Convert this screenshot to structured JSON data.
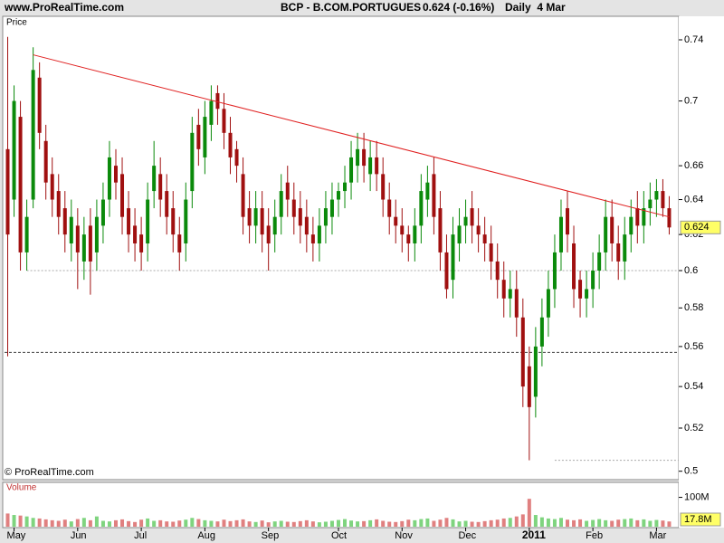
{
  "chart_data": {
    "type": "candlestick",
    "site": "www.ProRealTime.com",
    "title": "BCP - B.COM.PORTUGUES",
    "quote": "0.624 (-0.16%)",
    "period": "Daily  4 Mar",
    "panel_label": "Price",
    "watermark": "© ProRealTime.com",
    "log_scale": true,
    "up_color": "#0b8a0b",
    "down_color": "#a01010",
    "categories": [
      null,
      "May",
      null,
      null,
      null,
      null,
      null,
      null,
      null,
      null,
      null,
      "Jun",
      null,
      null,
      null,
      null,
      null,
      null,
      null,
      null,
      null,
      "Jul",
      null,
      null,
      null,
      null,
      null,
      null,
      null,
      null,
      null,
      "Aug",
      null,
      null,
      null,
      null,
      null,
      null,
      null,
      null,
      null,
      "Sep",
      null,
      null,
      null,
      null,
      null,
      null,
      null,
      null,
      null,
      null,
      "Oct",
      null,
      null,
      null,
      null,
      null,
      null,
      null,
      null,
      null,
      "Nov",
      null,
      null,
      null,
      null,
      null,
      null,
      null,
      null,
      null,
      "Dec",
      null,
      null,
      null,
      null,
      null,
      null,
      null,
      null,
      null,
      "2011",
      null,
      null,
      null,
      null,
      null,
      null,
      null,
      null,
      null,
      "Feb",
      null,
      null,
      null,
      null,
      null,
      null,
      null,
      null,
      null,
      "Mar",
      null,
      null
    ],
    "open": [
      0.67,
      0.64,
      0.69,
      0.61,
      0.64,
      0.715,
      0.675,
      0.655,
      0.645,
      0.635,
      0.615,
      0.625,
      0.605,
      0.625,
      0.61,
      0.625,
      0.64,
      0.66,
      0.655,
      0.635,
      0.625,
      0.62,
      0.615,
      0.645,
      0.655,
      0.645,
      0.635,
      0.62,
      0.615,
      0.645,
      0.685,
      0.665,
      0.685,
      0.705,
      0.695,
      0.68,
      0.67,
      0.655,
      0.635,
      0.625,
      0.635,
      0.625,
      0.62,
      0.63,
      0.65,
      0.64,
      0.635,
      0.63,
      0.62,
      0.615,
      0.625,
      0.63,
      0.64,
      0.645,
      0.65,
      0.66,
      0.67,
      0.655,
      0.665,
      0.655,
      0.64,
      0.63,
      0.625,
      0.62,
      0.615,
      0.625,
      0.64,
      0.655,
      0.635,
      0.61,
      0.595,
      0.615,
      0.625,
      0.635,
      0.625,
      0.62,
      0.615,
      0.605,
      0.595,
      0.585,
      0.59,
      0.575,
      0.55,
      0.535,
      0.56,
      0.575,
      0.59,
      0.61,
      0.635,
      0.615,
      0.595,
      0.585,
      0.59,
      0.6,
      0.61,
      0.63,
      0.615,
      0.605,
      0.62,
      0.635,
      0.625,
      0.635,
      0.64,
      0.645,
      0.635
    ],
    "high": [
      0.742,
      0.71,
      0.7,
      0.64,
      0.735,
      0.725,
      0.685,
      0.665,
      0.655,
      0.645,
      0.64,
      0.635,
      0.63,
      0.635,
      0.64,
      0.65,
      0.675,
      0.67,
      0.665,
      0.645,
      0.635,
      0.63,
      0.65,
      0.675,
      0.665,
      0.655,
      0.645,
      0.63,
      0.65,
      0.69,
      0.695,
      0.7,
      0.71,
      0.71,
      0.705,
      0.69,
      0.675,
      0.665,
      0.645,
      0.645,
      0.645,
      0.635,
      0.64,
      0.655,
      0.66,
      0.65,
      0.645,
      0.64,
      0.63,
      0.635,
      0.645,
      0.65,
      0.65,
      0.66,
      0.675,
      0.68,
      0.68,
      0.675,
      0.675,
      0.665,
      0.65,
      0.64,
      0.635,
      0.625,
      0.635,
      0.655,
      0.66,
      0.665,
      0.645,
      0.62,
      0.63,
      0.635,
      0.64,
      0.645,
      0.635,
      0.63,
      0.625,
      0.615,
      0.605,
      0.6,
      0.6,
      0.585,
      0.56,
      0.57,
      0.585,
      0.6,
      0.62,
      0.64,
      0.645,
      0.625,
      0.6,
      0.6,
      0.61,
      0.62,
      0.64,
      0.64,
      0.625,
      0.63,
      0.64,
      0.645,
      0.645,
      0.65,
      0.652,
      0.652,
      0.642
    ],
    "low": [
      0.555,
      0.63,
      0.6,
      0.6,
      0.635,
      0.67,
      0.64,
      0.63,
      0.62,
      0.61,
      0.605,
      0.59,
      0.595,
      0.587,
      0.6,
      0.615,
      0.63,
      0.64,
      0.62,
      0.61,
      0.605,
      0.6,
      0.605,
      0.635,
      0.63,
      0.62,
      0.61,
      0.6,
      0.605,
      0.635,
      0.66,
      0.655,
      0.675,
      0.685,
      0.67,
      0.655,
      0.65,
      0.62,
      0.615,
      0.615,
      0.61,
      0.6,
      0.61,
      0.62,
      0.63,
      0.62,
      0.615,
      0.61,
      0.605,
      0.605,
      0.615,
      0.62,
      0.63,
      0.635,
      0.64,
      0.65,
      0.65,
      0.645,
      0.645,
      0.63,
      0.62,
      0.615,
      0.61,
      0.605,
      0.605,
      0.615,
      0.63,
      0.62,
      0.6,
      0.585,
      0.585,
      0.605,
      0.615,
      0.615,
      0.61,
      0.605,
      0.595,
      0.585,
      0.575,
      0.575,
      0.565,
      0.53,
      0.505,
      0.525,
      0.55,
      0.565,
      0.58,
      0.6,
      0.61,
      0.58,
      0.575,
      0.575,
      0.58,
      0.59,
      0.6,
      0.605,
      0.595,
      0.595,
      0.61,
      0.615,
      0.615,
      0.625,
      0.63,
      0.63,
      0.62
    ],
    "close": [
      0.62,
      0.7,
      0.61,
      0.63,
      0.72,
      0.68,
      0.65,
      0.64,
      0.63,
      0.62,
      0.63,
      0.61,
      0.62,
      0.605,
      0.63,
      0.64,
      0.665,
      0.65,
      0.63,
      0.62,
      0.615,
      0.61,
      0.64,
      0.66,
      0.64,
      0.63,
      0.62,
      0.61,
      0.64,
      0.68,
      0.67,
      0.69,
      0.7,
      0.695,
      0.68,
      0.665,
      0.66,
      0.63,
      0.625,
      0.635,
      0.62,
      0.615,
      0.63,
      0.645,
      0.64,
      0.63,
      0.625,
      0.62,
      0.615,
      0.625,
      0.635,
      0.64,
      0.645,
      0.65,
      0.665,
      0.67,
      0.66,
      0.665,
      0.655,
      0.64,
      0.63,
      0.625,
      0.62,
      0.615,
      0.625,
      0.645,
      0.65,
      0.63,
      0.61,
      0.59,
      0.62,
      0.625,
      0.63,
      0.625,
      0.62,
      0.615,
      0.605,
      0.595,
      0.585,
      0.59,
      0.575,
      0.54,
      0.53,
      0.56,
      0.575,
      0.59,
      0.61,
      0.63,
      0.62,
      0.59,
      0.585,
      0.59,
      0.6,
      0.61,
      0.63,
      0.615,
      0.605,
      0.62,
      0.63,
      0.625,
      0.635,
      0.64,
      0.645,
      0.635,
      0.624
    ],
    "ylim": [
      0.497,
      0.756
    ],
    "yticks": [
      0.5,
      0.52,
      0.54,
      0.56,
      0.58,
      0.6,
      0.62,
      0.64,
      0.66,
      0.7,
      0.74
    ],
    "trend_line": {
      "color": "#e02020",
      "x": [
        4,
        104
      ],
      "y": [
        0.73,
        0.63
      ]
    },
    "levels": [
      0.6,
      0.557,
      0.505
    ],
    "volume": {
      "label": "Volume",
      "values": [
        45,
        40,
        38,
        35,
        30,
        28,
        25,
        22,
        20,
        24,
        18,
        26,
        30,
        22,
        35,
        20,
        18,
        22,
        25,
        19,
        16,
        24,
        28,
        20,
        22,
        18,
        17,
        21,
        24,
        30,
        26,
        22,
        20,
        18,
        24,
        19,
        22,
        25,
        18,
        16,
        21,
        15,
        18,
        20,
        17,
        16,
        19,
        22,
        18,
        15,
        17,
        20,
        23,
        26,
        21,
        18,
        19,
        22,
        25,
        20,
        17,
        16,
        19,
        24,
        22,
        26,
        28,
        20,
        24,
        30,
        25,
        18,
        20,
        17,
        16,
        19,
        22,
        24,
        28,
        30,
        35,
        42,
        95,
        40,
        32,
        28,
        26,
        30,
        24,
        22,
        25,
        20,
        23,
        26,
        22,
        20,
        24,
        26,
        28,
        22,
        25,
        20,
        23,
        21,
        17.8
      ],
      "value_labels": [
        null,
        null,
        null,
        null,
        null,
        null,
        null,
        null,
        null,
        null,
        null,
        null,
        null,
        null,
        null,
        null,
        null,
        null,
        null,
        null,
        null,
        null,
        null,
        null,
        null,
        null,
        null,
        null,
        null,
        null,
        null,
        null,
        null,
        null,
        null,
        null,
        null,
        null,
        null,
        null,
        null,
        null,
        null,
        null,
        null,
        null,
        null,
        null,
        null,
        null,
        null,
        null,
        null,
        null,
        null,
        null,
        null,
        null,
        null,
        null,
        null,
        null,
        null,
        null,
        null,
        null,
        null,
        null,
        null,
        null,
        null,
        null,
        null,
        null,
        null,
        null,
        null,
        null,
        null,
        null,
        null,
        null,
        null,
        null,
        null,
        null,
        null,
        null,
        null,
        null,
        null,
        null,
        null,
        null,
        null,
        null,
        null,
        null,
        null,
        null,
        null,
        null,
        null,
        null,
        "17.8M"
      ],
      "ylim": [
        0,
        148
      ],
      "yticks": [
        {
          "value": 100,
          "label": "100M"
        }
      ]
    }
  }
}
